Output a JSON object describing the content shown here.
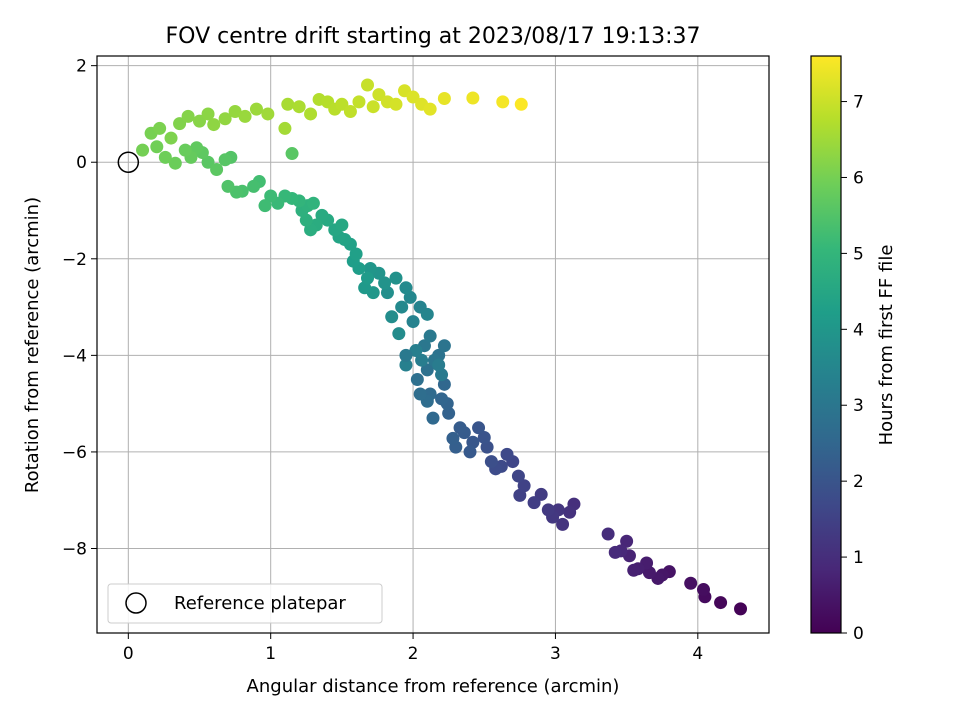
{
  "chart_data": {
    "type": "scatter",
    "title": "FOV centre drift starting at 2023/08/17 19:13:37",
    "xlabel": "Angular distance from reference (arcmin)",
    "ylabel": "Rotation from reference (arcmin)",
    "xlim": [
      -0.22,
      4.5
    ],
    "ylim": [
      -9.75,
      2.2
    ],
    "xticks": [
      "0",
      "1",
      "2",
      "3",
      "4"
    ],
    "xtick_values": [
      0,
      1,
      2,
      3,
      4
    ],
    "yticks": [
      "2",
      "0",
      "−2",
      "−4",
      "−6",
      "−8"
    ],
    "ytick_values": [
      2,
      0,
      -2,
      -4,
      -6,
      -8
    ],
    "grid": true,
    "legend": {
      "placement": "lower-left",
      "label": "Reference platepar"
    },
    "reference_point": {
      "x": 0,
      "y": 0
    },
    "colorbar": {
      "label": "Hours from first FF file",
      "colormap": "viridis",
      "range": [
        0,
        7.6
      ],
      "ticks": [
        "0",
        "1",
        "2",
        "3",
        "4",
        "5",
        "6",
        "7"
      ],
      "tick_values": [
        0,
        1,
        2,
        3,
        4,
        5,
        6,
        7
      ]
    },
    "colors": {
      "viridis": [
        "#440154",
        "#482878",
        "#3e4989",
        "#31688e",
        "#26828e",
        "#1f9e89",
        "#35b779",
        "#6ece58",
        "#b5de2b",
        "#fde725"
      ]
    },
    "series_note_columns": [
      "x",
      "y",
      "hours"
    ],
    "points": [
      [
        4.3,
        -9.25,
        0.05
      ],
      [
        4.16,
        -9.12,
        0.12
      ],
      [
        4.05,
        -9.0,
        0.2
      ],
      [
        4.04,
        -8.85,
        0.25
      ],
      [
        3.95,
        -8.72,
        0.32
      ],
      [
        3.8,
        -8.48,
        0.4
      ],
      [
        3.75,
        -8.55,
        0.45
      ],
      [
        3.72,
        -8.62,
        0.5
      ],
      [
        3.66,
        -8.5,
        0.55
      ],
      [
        3.64,
        -8.3,
        0.6
      ],
      [
        3.58,
        -8.42,
        0.66
      ],
      [
        3.55,
        -8.45,
        0.7
      ],
      [
        3.52,
        -8.15,
        0.76
      ],
      [
        3.5,
        -7.85,
        0.82
      ],
      [
        3.46,
        -8.05,
        0.88
      ],
      [
        3.42,
        -8.08,
        0.92
      ],
      [
        3.37,
        -7.7,
        0.98
      ],
      [
        3.13,
        -7.08,
        1.05
      ],
      [
        3.1,
        -7.25,
        1.1
      ],
      [
        3.05,
        -7.5,
        1.15
      ],
      [
        3.02,
        -7.2,
        1.2
      ],
      [
        2.98,
        -7.35,
        1.25
      ],
      [
        2.95,
        -7.2,
        1.3
      ],
      [
        2.9,
        -6.88,
        1.36
      ],
      [
        2.85,
        -7.05,
        1.42
      ],
      [
        2.75,
        -6.9,
        1.48
      ],
      [
        2.78,
        -6.7,
        1.52
      ],
      [
        2.74,
        -6.5,
        1.58
      ],
      [
        2.7,
        -6.2,
        1.62
      ],
      [
        2.66,
        -6.05,
        1.68
      ],
      [
        2.62,
        -6.3,
        1.72
      ],
      [
        2.58,
        -6.35,
        1.78
      ],
      [
        2.55,
        -6.2,
        1.84
      ],
      [
        2.52,
        -5.9,
        1.9
      ],
      [
        2.5,
        -5.7,
        1.96
      ],
      [
        2.46,
        -5.5,
        2.02
      ],
      [
        2.42,
        -5.8,
        2.08
      ],
      [
        2.4,
        -6.0,
        2.12
      ],
      [
        2.36,
        -5.6,
        2.18
      ],
      [
        2.33,
        -5.5,
        2.22
      ],
      [
        2.3,
        -5.9,
        2.28
      ],
      [
        2.28,
        -5.72,
        2.32
      ],
      [
        2.25,
        -5.2,
        2.38
      ],
      [
        2.24,
        -5.0,
        2.42
      ],
      [
        2.2,
        -4.9,
        2.48
      ],
      [
        2.22,
        -4.6,
        2.52
      ],
      [
        2.14,
        -5.3,
        2.58
      ],
      [
        2.12,
        -4.8,
        2.62
      ],
      [
        2.1,
        -4.95,
        2.68
      ],
      [
        2.05,
        -4.8,
        2.72
      ],
      [
        2.03,
        -4.5,
        2.78
      ],
      [
        2.1,
        -4.3,
        2.82
      ],
      [
        2.18,
        -4.0,
        2.88
      ],
      [
        2.22,
        -3.8,
        2.92
      ],
      [
        2.15,
        -4.1,
        2.98
      ],
      [
        2.08,
        -3.8,
        3.02
      ],
      [
        2.12,
        -3.6,
        3.08
      ],
      [
        2.2,
        -4.4,
        3.12
      ],
      [
        2.18,
        -4.2,
        3.18
      ],
      [
        2.06,
        -4.1,
        3.22
      ],
      [
        2.02,
        -3.9,
        3.28
      ],
      [
        1.95,
        -4.2,
        3.32
      ],
      [
        2.0,
        -3.3,
        3.38
      ],
      [
        2.05,
        -3.0,
        3.42
      ],
      [
        2.1,
        -3.15,
        3.48
      ],
      [
        1.98,
        -2.8,
        3.52
      ],
      [
        1.92,
        -3.0,
        3.58
      ],
      [
        1.95,
        -2.6,
        3.62
      ],
      [
        1.9,
        -3.55,
        3.68
      ],
      [
        1.85,
        -3.2,
        3.72
      ],
      [
        1.82,
        -2.7,
        3.78
      ],
      [
        1.88,
        -2.4,
        3.82
      ],
      [
        1.8,
        -2.5,
        3.88
      ],
      [
        1.76,
        -2.3,
        3.92
      ],
      [
        1.7,
        -2.2,
        3.98
      ],
      [
        1.72,
        -2.7,
        4.02
      ],
      [
        1.66,
        -2.6,
        4.08
      ],
      [
        1.68,
        -2.4,
        4.12
      ],
      [
        1.62,
        -2.2,
        4.18
      ],
      [
        1.58,
        -2.05,
        4.22
      ],
      [
        1.6,
        -1.9,
        4.28
      ],
      [
        1.56,
        -1.7,
        4.32
      ],
      [
        1.52,
        -1.6,
        4.38
      ],
      [
        1.48,
        -1.55,
        4.42
      ],
      [
        1.45,
        -1.4,
        4.48
      ],
      [
        1.5,
        -1.3,
        4.52
      ],
      [
        1.4,
        -1.2,
        4.58
      ],
      [
        1.36,
        -1.1,
        4.62
      ],
      [
        1.32,
        -1.3,
        4.68
      ],
      [
        1.28,
        -1.4,
        4.72
      ],
      [
        1.25,
        -1.2,
        4.78
      ],
      [
        1.22,
        -1.0,
        4.82
      ],
      [
        1.26,
        -0.9,
        4.88
      ],
      [
        1.3,
        -0.85,
        4.92
      ],
      [
        1.2,
        -0.8,
        4.98
      ],
      [
        1.15,
        -0.75,
        5.02
      ],
      [
        1.1,
        -0.7,
        5.08
      ],
      [
        1.05,
        -0.85,
        5.12
      ],
      [
        1.0,
        -0.7,
        5.18
      ],
      [
        0.96,
        -0.9,
        5.22
      ],
      [
        0.92,
        -0.4,
        5.28
      ],
      [
        0.88,
        -0.5,
        5.32
      ],
      [
        0.8,
        -0.6,
        5.38
      ],
      [
        0.76,
        -0.62,
        5.42
      ],
      [
        0.7,
        -0.5,
        5.48
      ],
      [
        0.72,
        0.1,
        5.52
      ],
      [
        0.68,
        0.05,
        5.58
      ],
      [
        0.56,
        0.0,
        5.62
      ],
      [
        0.52,
        0.2,
        5.68
      ],
      [
        0.48,
        0.3,
        5.72
      ],
      [
        0.44,
        0.1,
        5.78
      ],
      [
        0.4,
        0.25,
        5.82
      ],
      [
        0.33,
        -0.02,
        5.86
      ],
      [
        0.26,
        0.1,
        5.9
      ],
      [
        0.2,
        0.32,
        5.94
      ],
      [
        0.1,
        0.25,
        5.98
      ],
      [
        0.16,
        0.6,
        6.02
      ],
      [
        0.22,
        0.7,
        6.06
      ],
      [
        0.3,
        0.5,
        6.1
      ],
      [
        0.36,
        0.8,
        6.14
      ],
      [
        0.42,
        0.95,
        6.18
      ],
      [
        0.5,
        0.85,
        6.22
      ],
      [
        0.56,
        1.0,
        6.26
      ],
      [
        0.6,
        0.78,
        6.3
      ],
      [
        0.68,
        0.9,
        6.34
      ],
      [
        0.75,
        1.05,
        6.38
      ],
      [
        0.82,
        0.95,
        6.42
      ],
      [
        0.9,
        1.1,
        6.46
      ],
      [
        0.98,
        1.0,
        6.5
      ],
      [
        1.1,
        0.7,
        6.55
      ],
      [
        1.12,
        1.2,
        6.6
      ],
      [
        1.2,
        1.15,
        6.64
      ],
      [
        1.28,
        1.0,
        6.68
      ],
      [
        1.34,
        1.3,
        6.72
      ],
      [
        1.4,
        1.25,
        6.76
      ],
      [
        1.45,
        1.1,
        6.8
      ],
      [
        1.5,
        1.2,
        6.84
      ],
      [
        1.56,
        1.05,
        6.88
      ],
      [
        1.62,
        1.25,
        6.92
      ],
      [
        1.68,
        1.6,
        6.96
      ],
      [
        1.72,
        1.15,
        7.0
      ],
      [
        1.76,
        1.4,
        7.04
      ],
      [
        1.82,
        1.25,
        7.08
      ],
      [
        1.88,
        1.2,
        7.12
      ],
      [
        1.94,
        1.48,
        7.16
      ],
      [
        2.0,
        1.35,
        7.2
      ],
      [
        2.06,
        1.2,
        7.24
      ],
      [
        2.12,
        1.1,
        7.28
      ],
      [
        2.22,
        1.32,
        7.34
      ],
      [
        2.42,
        1.33,
        7.42
      ],
      [
        2.63,
        1.25,
        7.5
      ],
      [
        2.76,
        1.2,
        7.58
      ],
      [
        1.15,
        0.18,
        5.6
      ],
      [
        0.62,
        -0.15,
        5.65
      ],
      [
        1.95,
        -4.0,
        3.1
      ]
    ]
  }
}
